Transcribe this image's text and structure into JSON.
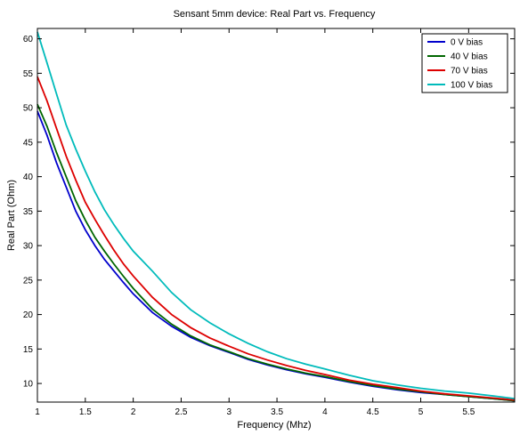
{
  "chart_data": {
    "type": "line",
    "title": "Sensant 5mm device:  Real Part vs. Frequency",
    "xlabel": "Frequency (Mhz)",
    "ylabel": "Real Part (Ohm)",
    "xlim": [
      1,
      5.98
    ],
    "ylim": [
      7.3,
      61.5
    ],
    "xticks": [
      1,
      1.5,
      2,
      2.5,
      3,
      3.5,
      4,
      4.5,
      5,
      5.5
    ],
    "xtick_labels": [
      "1",
      "1.5",
      "2",
      "2.5",
      "3",
      "3.5",
      "4",
      "4.5",
      "5",
      "5.5"
    ],
    "yticks": [
      10,
      15,
      20,
      25,
      30,
      35,
      40,
      45,
      50,
      55,
      60
    ],
    "ytick_labels": [
      "10",
      "15",
      "20",
      "25",
      "30",
      "35",
      "40",
      "45",
      "50",
      "55",
      "60"
    ],
    "grid": false,
    "legend_position": "top-right",
    "x": [
      1.0,
      1.1,
      1.2,
      1.3,
      1.4,
      1.5,
      1.6,
      1.7,
      1.8,
      1.9,
      2.0,
      2.2,
      2.4,
      2.6,
      2.8,
      3.0,
      3.2,
      3.4,
      3.6,
      3.8,
      4.0,
      4.25,
      4.5,
      4.75,
      5.0,
      5.25,
      5.5,
      5.75,
      5.98
    ],
    "series": [
      {
        "name": "0 V bias",
        "color": "#0000cc",
        "values": [
          49.5,
          46.0,
          42.0,
          38.5,
          35.0,
          32.3,
          30.0,
          28.0,
          26.3,
          24.6,
          23.0,
          20.3,
          18.3,
          16.7,
          15.5,
          14.5,
          13.5,
          12.7,
          12.0,
          11.4,
          10.9,
          10.2,
          9.6,
          9.1,
          8.7,
          8.4,
          8.1,
          7.8,
          7.5
        ]
      },
      {
        "name": "40 V bias",
        "color": "#006600",
        "values": [
          50.5,
          47.3,
          43.5,
          40.0,
          36.5,
          33.7,
          31.2,
          29.2,
          27.3,
          25.5,
          23.8,
          20.8,
          18.6,
          16.9,
          15.6,
          14.6,
          13.6,
          12.8,
          12.1,
          11.5,
          11.0,
          10.3,
          9.7,
          9.2,
          8.8,
          8.4,
          8.1,
          7.8,
          7.5
        ]
      },
      {
        "name": "70 V bias",
        "color": "#dd0000",
        "values": [
          54.5,
          51.0,
          47.0,
          43.0,
          39.5,
          36.3,
          33.8,
          31.5,
          29.3,
          27.3,
          25.6,
          22.5,
          20.0,
          18.1,
          16.6,
          15.4,
          14.3,
          13.4,
          12.6,
          11.9,
          11.3,
          10.5,
          9.9,
          9.4,
          8.9,
          8.5,
          8.2,
          7.9,
          7.6
        ]
      },
      {
        "name": "100 V bias",
        "color": "#00bbbb",
        "values": [
          61.0,
          56.5,
          52.0,
          47.5,
          44.0,
          40.8,
          37.8,
          35.2,
          33.0,
          31.0,
          29.2,
          26.3,
          23.2,
          20.7,
          18.8,
          17.2,
          15.8,
          14.6,
          13.6,
          12.8,
          12.1,
          11.2,
          10.4,
          9.8,
          9.3,
          8.9,
          8.6,
          8.2,
          7.8
        ]
      }
    ]
  }
}
